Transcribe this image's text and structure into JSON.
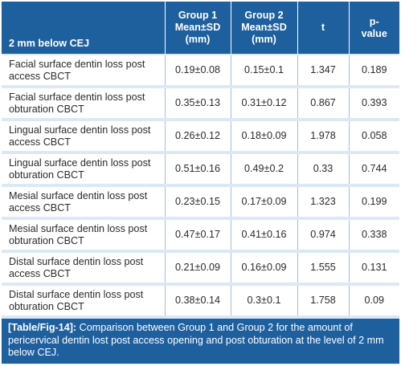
{
  "table": {
    "headers": {
      "label": "2 mm below CEJ",
      "group1": [
        "Group 1",
        "Mean±SD",
        "(mm)"
      ],
      "group2": [
        "Group 2",
        "Mean±SD",
        "(mm)"
      ],
      "t": "t",
      "p": [
        "p-",
        "value"
      ]
    },
    "rows": [
      {
        "label": [
          "Facial surface dentin loss post",
          "access CBCT"
        ],
        "group1": "0.19±0.08",
        "group2": "0.15±0.1",
        "t": "1.347",
        "p": "0.189"
      },
      {
        "label": [
          "Facial surface dentin loss post",
          "obturation CBCT"
        ],
        "group1": "0.35±0.13",
        "group2": "0.31±0.12",
        "t": "0.867",
        "p": "0.393"
      },
      {
        "label": [
          "Lingual surface dentin loss post",
          "access CBCT"
        ],
        "group1": "0.26±0.12",
        "group2": "0.18±0.09",
        "t": "1.978",
        "p": "0.058"
      },
      {
        "label": [
          "Lingual surface dentin loss post",
          "obturation CBCT"
        ],
        "group1": "0.51±0.16",
        "group2": "0.49±0.2",
        "t": "0.33",
        "p": "0.744"
      },
      {
        "label": [
          "Mesial surface dentin loss post",
          "access CBCT"
        ],
        "group1": "0.23±0.15",
        "group2": "0.17±0.09",
        "t": "1.323",
        "p": "0.199"
      },
      {
        "label": [
          "Mesial surface dentin loss post",
          "obturation CBCT"
        ],
        "group1": "0.47±0.17",
        "group2": "0.41±0.16",
        "t": "0.974",
        "p": "0.338"
      },
      {
        "label": [
          "Distal surface dentin loss post",
          "access CBCT"
        ],
        "group1": "0.21±0.09",
        "group2": "0.16±0.09",
        "t": "1.555",
        "p": "0.131"
      },
      {
        "label": [
          "Distal surface dentin loss post",
          "obturation CBCT"
        ],
        "group1": "0.38±0.14",
        "group2": "0.3±0.1",
        "t": "1.758",
        "p": "0.09"
      }
    ]
  },
  "caption": {
    "tag": "[Table/Fig-14]:",
    "text": " Comparison between Group 1 and Group 2 for the amount of pericervical dentin lost post access opening and post obturation at the level of 2 mm below CEJ."
  },
  "colors": {
    "header_bg": "#1e5f9e",
    "panel_bg": "#dce9f5",
    "cell_bg": "#ffffff"
  }
}
